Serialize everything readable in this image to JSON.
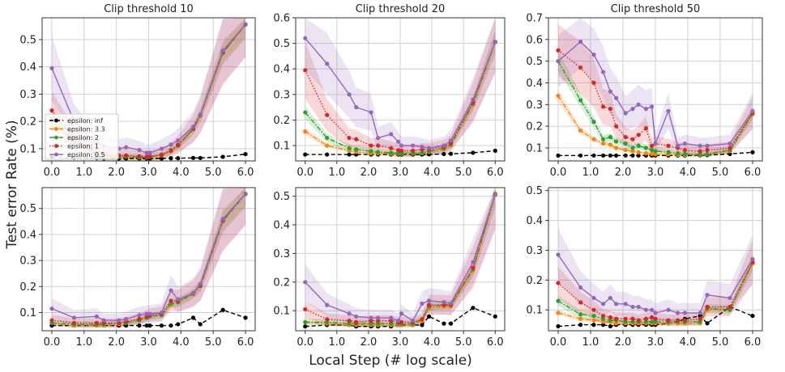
{
  "figure": {
    "ylabel": "Test error Rate (%)",
    "xlabel": "Local Step (# log scale)"
  },
  "legend": {
    "entries": [
      {
        "label": "epsilon: inf",
        "color": "#000000",
        "style": "dashed"
      },
      {
        "label": "epsilon: 3.3",
        "color": "#ff7f0e",
        "style": "dashdot"
      },
      {
        "label": "epsilon: 2",
        "color": "#2ca02c",
        "style": "dashdot"
      },
      {
        "label": "epsilon: 1",
        "color": "#d62728",
        "style": "dotted"
      },
      {
        "label": "epsilon: 0.5",
        "color": "#9467bd",
        "style": "solid"
      }
    ]
  },
  "chart_data": [
    {
      "type": "line",
      "title": "Clip threshold 10",
      "xlabel": "",
      "ylabel": "",
      "xlim": [
        -0.3,
        6.3
      ],
      "ylim": [
        0.055,
        0.58
      ],
      "xticks": [
        0.0,
        1.0,
        2.0,
        3.0,
        4.0,
        5.0,
        6.0
      ],
      "yticks": [
        0.1,
        0.2,
        0.3,
        0.4,
        0.5
      ],
      "grid": true,
      "legend_position": "center-left",
      "x": [
        0.0,
        0.69,
        1.39,
        1.61,
        2.08,
        2.3,
        2.71,
        2.94,
        3.04,
        3.4,
        3.69,
        3.91,
        4.38,
        4.6,
        5.3,
        6.0
      ],
      "series": [
        {
          "name": "epsilon: inf",
          "color": "#000000",
          "style": "dashed",
          "values": [
            0.07,
            0.066,
            0.065,
            0.064,
            0.064,
            0.064,
            0.064,
            0.064,
            0.064,
            0.064,
            0.065,
            0.065,
            0.066,
            0.066,
            0.07,
            0.08
          ]
        },
        {
          "name": "epsilon: 3.3",
          "color": "#ff7f0e",
          "style": "dashdot",
          "values": [
            0.2,
            0.13,
            0.08,
            0.075,
            0.07,
            0.07,
            0.068,
            0.068,
            0.07,
            0.075,
            0.09,
            0.11,
            0.17,
            0.22,
            0.45,
            0.555
          ]
        },
        {
          "name": "epsilon: 2",
          "color": "#2ca02c",
          "style": "dashdot",
          "values": [
            0.21,
            0.13,
            0.08,
            0.075,
            0.07,
            0.07,
            0.068,
            0.068,
            0.07,
            0.076,
            0.092,
            0.112,
            0.172,
            0.222,
            0.452,
            0.555
          ]
        },
        {
          "name": "epsilon: 1",
          "color": "#d62728",
          "style": "dotted",
          "values": [
            0.24,
            0.14,
            0.085,
            0.08,
            0.075,
            0.075,
            0.072,
            0.07,
            0.072,
            0.078,
            0.094,
            0.114,
            0.174,
            0.224,
            0.455,
            0.556
          ]
        },
        {
          "name": "epsilon: 0.5",
          "color": "#9467bd",
          "style": "solid",
          "values": [
            0.395,
            0.2,
            0.12,
            0.11,
            0.1,
            0.105,
            0.095,
            0.085,
            0.085,
            0.1,
            0.115,
            0.13,
            0.18,
            0.225,
            0.46,
            0.556
          ]
        }
      ]
    },
    {
      "type": "line",
      "title": "Clip threshold 20",
      "xlabel": "",
      "ylabel": "",
      "xlim": [
        -0.3,
        6.3
      ],
      "ylim": [
        0.04,
        0.6
      ],
      "xticks": [
        0.0,
        1.0,
        2.0,
        3.0,
        4.0,
        5.0,
        6.0
      ],
      "yticks": [
        0.1,
        0.2,
        0.3,
        0.4,
        0.5,
        0.6
      ],
      "grid": true,
      "x": [
        0.0,
        0.69,
        1.39,
        1.61,
        2.08,
        2.3,
        2.71,
        2.94,
        3.04,
        3.4,
        3.69,
        3.91,
        4.38,
        4.6,
        5.3,
        6.0
      ],
      "series": [
        {
          "name": "epsilon: inf",
          "color": "#000000",
          "style": "dashed",
          "values": [
            0.065,
            0.065,
            0.065,
            0.065,
            0.065,
            0.065,
            0.065,
            0.065,
            0.065,
            0.065,
            0.065,
            0.066,
            0.067,
            0.068,
            0.072,
            0.08
          ]
        },
        {
          "name": "epsilon: 3.3",
          "color": "#ff7f0e",
          "style": "dashdot",
          "values": [
            0.155,
            0.1,
            0.08,
            0.075,
            0.07,
            0.07,
            0.068,
            0.068,
            0.068,
            0.068,
            0.07,
            0.075,
            0.085,
            0.1,
            0.26,
            0.505
          ]
        },
        {
          "name": "epsilon: 2",
          "color": "#2ca02c",
          "style": "dashdot",
          "values": [
            0.23,
            0.13,
            0.09,
            0.085,
            0.078,
            0.075,
            0.072,
            0.07,
            0.07,
            0.07,
            0.072,
            0.078,
            0.09,
            0.105,
            0.265,
            0.505
          ]
        },
        {
          "name": "epsilon: 1",
          "color": "#d62728",
          "style": "dotted",
          "values": [
            0.395,
            0.22,
            0.13,
            0.125,
            0.1,
            0.1,
            0.09,
            0.082,
            0.08,
            0.08,
            0.085,
            0.085,
            0.095,
            0.11,
            0.27,
            0.506
          ]
        },
        {
          "name": "epsilon: 0.5",
          "color": "#9467bd",
          "style": "solid",
          "values": [
            0.52,
            0.42,
            0.3,
            0.25,
            0.23,
            0.13,
            0.145,
            0.115,
            0.1,
            0.1,
            0.095,
            0.09,
            0.1,
            0.12,
            0.28,
            0.505
          ]
        }
      ]
    },
    {
      "type": "line",
      "title": "Clip threshold 50",
      "xlabel": "",
      "ylabel": "",
      "xlim": [
        -0.3,
        6.3
      ],
      "ylim": [
        0.04,
        0.7
      ],
      "xticks": [
        0.0,
        1.0,
        2.0,
        3.0,
        4.0,
        5.0,
        6.0
      ],
      "yticks": [
        0.1,
        0.2,
        0.3,
        0.4,
        0.5,
        0.6,
        0.7
      ],
      "grid": true,
      "x": [
        0.0,
        0.69,
        1.1,
        1.39,
        1.61,
        1.79,
        2.08,
        2.3,
        2.48,
        2.71,
        2.89,
        3.0,
        3.4,
        3.69,
        3.91,
        4.38,
        4.6,
        5.3,
        6.0
      ],
      "series": [
        {
          "name": "epsilon: inf",
          "color": "#000000",
          "style": "dashed",
          "values": [
            0.065,
            0.065,
            0.065,
            0.065,
            0.065,
            0.065,
            0.065,
            0.065,
            0.065,
            0.065,
            0.065,
            0.065,
            0.065,
            0.065,
            0.065,
            0.066,
            0.067,
            0.072,
            0.08
          ]
        },
        {
          "name": "epsilon: 3.3",
          "color": "#ff7f0e",
          "style": "dashdot",
          "values": [
            0.34,
            0.18,
            0.14,
            0.12,
            0.115,
            0.1,
            0.09,
            0.085,
            0.08,
            0.075,
            0.072,
            0.07,
            0.07,
            0.068,
            0.068,
            0.068,
            0.07,
            0.085,
            0.255
          ]
        },
        {
          "name": "epsilon: 2",
          "color": "#2ca02c",
          "style": "dashdot",
          "values": [
            0.5,
            0.32,
            0.22,
            0.14,
            0.15,
            0.13,
            0.12,
            0.1,
            0.11,
            0.1,
            0.09,
            0.085,
            0.08,
            0.075,
            0.072,
            0.07,
            0.072,
            0.09,
            0.26
          ]
        },
        {
          "name": "epsilon: 1",
          "color": "#d62728",
          "style": "dotted",
          "values": [
            0.55,
            0.47,
            0.4,
            0.29,
            0.28,
            0.2,
            0.15,
            0.14,
            0.16,
            0.19,
            0.11,
            0.12,
            0.11,
            0.1,
            0.09,
            0.085,
            0.09,
            0.1,
            0.262
          ]
        },
        {
          "name": "epsilon: 0.5",
          "color": "#9467bd",
          "style": "solid",
          "values": [
            0.5,
            0.59,
            0.53,
            0.45,
            0.36,
            0.33,
            0.26,
            0.28,
            0.3,
            0.28,
            0.29,
            0.12,
            0.27,
            0.11,
            0.12,
            0.11,
            0.11,
            0.12,
            0.27
          ]
        }
      ]
    },
    {
      "type": "line",
      "title": "",
      "xlabel": "",
      "ylabel": "",
      "xlim": [
        -0.3,
        6.3
      ],
      "ylim": [
        0.03,
        0.58
      ],
      "xticks": [
        0.0,
        1.0,
        2.0,
        3.0,
        4.0,
        5.0,
        6.0
      ],
      "yticks": [
        0.1,
        0.2,
        0.3,
        0.4,
        0.5
      ],
      "grid": true,
      "x": [
        0.0,
        0.69,
        1.39,
        1.61,
        2.08,
        2.3,
        2.71,
        2.94,
        3.04,
        3.4,
        3.69,
        3.91,
        4.38,
        4.6,
        5.3,
        6.0
      ],
      "series": [
        {
          "name": "epsilon: inf",
          "color": "#000000",
          "style": "dashed",
          "values": [
            0.05,
            0.05,
            0.05,
            0.05,
            0.05,
            0.05,
            0.05,
            0.05,
            0.05,
            0.05,
            0.05,
            0.055,
            0.08,
            0.055,
            0.11,
            0.08
          ]
        },
        {
          "name": "epsilon: 3.3",
          "color": "#ff7f0e",
          "style": "dashdot",
          "values": [
            0.06,
            0.05,
            0.05,
            0.05,
            0.055,
            0.06,
            0.07,
            0.08,
            0.085,
            0.09,
            0.13,
            0.14,
            0.17,
            0.2,
            0.45,
            0.555
          ]
        },
        {
          "name": "epsilon: 2",
          "color": "#2ca02c",
          "style": "dashdot",
          "values": [
            0.06,
            0.055,
            0.055,
            0.055,
            0.06,
            0.06,
            0.07,
            0.08,
            0.085,
            0.09,
            0.135,
            0.14,
            0.172,
            0.202,
            0.452,
            0.555
          ]
        },
        {
          "name": "epsilon: 1",
          "color": "#d62728",
          "style": "dotted",
          "values": [
            0.07,
            0.06,
            0.06,
            0.06,
            0.06,
            0.065,
            0.075,
            0.085,
            0.09,
            0.095,
            0.145,
            0.145,
            0.175,
            0.205,
            0.455,
            0.556
          ]
        },
        {
          "name": "epsilon: 0.5",
          "color": "#9467bd",
          "style": "solid",
          "values": [
            0.115,
            0.08,
            0.085,
            0.07,
            0.07,
            0.075,
            0.09,
            0.095,
            0.095,
            0.1,
            0.185,
            0.15,
            0.175,
            0.21,
            0.46,
            0.556
          ]
        }
      ]
    },
    {
      "type": "line",
      "title": "",
      "xlabel": "",
      "ylabel": "",
      "xlim": [
        -0.3,
        6.3
      ],
      "ylim": [
        0.03,
        0.53
      ],
      "xticks": [
        0.0,
        1.0,
        2.0,
        3.0,
        4.0,
        5.0,
        6.0
      ],
      "yticks": [
        0.1,
        0.2,
        0.3,
        0.4,
        0.5
      ],
      "grid": true,
      "x": [
        0.0,
        0.69,
        1.39,
        1.61,
        2.08,
        2.3,
        2.71,
        2.94,
        3.04,
        3.4,
        3.69,
        3.91,
        4.38,
        4.6,
        5.3,
        6.0
      ],
      "series": [
        {
          "name": "epsilon: inf",
          "color": "#000000",
          "style": "dashed",
          "values": [
            0.045,
            0.05,
            0.05,
            0.045,
            0.045,
            0.045,
            0.045,
            0.05,
            0.05,
            0.05,
            0.05,
            0.08,
            0.055,
            0.055,
            0.11,
            0.08
          ]
        },
        {
          "name": "epsilon: 3.3",
          "color": "#ff7f0e",
          "style": "dashdot",
          "values": [
            0.06,
            0.055,
            0.05,
            0.05,
            0.05,
            0.05,
            0.05,
            0.05,
            0.05,
            0.05,
            0.065,
            0.11,
            0.115,
            0.115,
            0.24,
            0.51
          ]
        },
        {
          "name": "epsilon: 2",
          "color": "#2ca02c",
          "style": "dashdot",
          "values": [
            0.06,
            0.06,
            0.055,
            0.055,
            0.055,
            0.055,
            0.055,
            0.055,
            0.055,
            0.055,
            0.07,
            0.115,
            0.12,
            0.12,
            0.245,
            0.505
          ]
        },
        {
          "name": "epsilon: 1",
          "color": "#d62728",
          "style": "dotted",
          "values": [
            0.105,
            0.07,
            0.065,
            0.06,
            0.065,
            0.065,
            0.065,
            0.06,
            0.06,
            0.06,
            0.07,
            0.12,
            0.12,
            0.12,
            0.25,
            0.505
          ]
        },
        {
          "name": "epsilon: 0.5",
          "color": "#9467bd",
          "style": "solid",
          "values": [
            0.2,
            0.12,
            0.09,
            0.08,
            0.075,
            0.075,
            0.075,
            0.065,
            0.09,
            0.065,
            0.125,
            0.135,
            0.13,
            0.125,
            0.27,
            0.505
          ]
        }
      ]
    },
    {
      "type": "line",
      "title": "",
      "xlabel": "",
      "ylabel": "",
      "xlim": [
        -0.3,
        6.3
      ],
      "ylim": [
        0.03,
        0.51
      ],
      "xticks": [
        0.0,
        1.0,
        2.0,
        3.0,
        4.0,
        5.0,
        6.0
      ],
      "yticks": [
        0.1,
        0.2,
        0.3,
        0.4,
        0.5
      ],
      "grid": true,
      "x": [
        0.0,
        0.69,
        1.1,
        1.39,
        1.61,
        1.79,
        2.08,
        2.3,
        2.48,
        2.71,
        2.89,
        3.0,
        3.4,
        3.69,
        3.91,
        4.38,
        4.6,
        5.3,
        6.0
      ],
      "series": [
        {
          "name": "epsilon: inf",
          "color": "#000000",
          "style": "dashed",
          "values": [
            0.045,
            0.05,
            0.05,
            0.05,
            0.045,
            0.05,
            0.05,
            0.05,
            0.05,
            0.05,
            0.05,
            0.05,
            0.055,
            0.06,
            0.07,
            0.08,
            0.055,
            0.11,
            0.08
          ]
        },
        {
          "name": "epsilon: 3.3",
          "color": "#ff7f0e",
          "style": "dashdot",
          "values": [
            0.09,
            0.07,
            0.065,
            0.06,
            0.06,
            0.055,
            0.055,
            0.055,
            0.055,
            0.055,
            0.055,
            0.055,
            0.055,
            0.055,
            0.055,
            0.055,
            0.1,
            0.1,
            0.255
          ]
        },
        {
          "name": "epsilon: 2",
          "color": "#2ca02c",
          "style": "dashdot",
          "values": [
            0.13,
            0.085,
            0.08,
            0.07,
            0.065,
            0.065,
            0.06,
            0.06,
            0.06,
            0.06,
            0.06,
            0.06,
            0.06,
            0.06,
            0.06,
            0.06,
            0.105,
            0.1,
            0.26
          ]
        },
        {
          "name": "epsilon: 1",
          "color": "#d62728",
          "style": "dotted",
          "values": [
            0.19,
            0.125,
            0.1,
            0.08,
            0.075,
            0.07,
            0.07,
            0.07,
            0.065,
            0.07,
            0.075,
            0.07,
            0.065,
            0.065,
            0.065,
            0.07,
            0.11,
            0.11,
            0.26
          ]
        },
        {
          "name": "epsilon: 0.5",
          "color": "#9467bd",
          "style": "solid",
          "values": [
            0.285,
            0.175,
            0.14,
            0.12,
            0.14,
            0.12,
            0.12,
            0.11,
            0.11,
            0.1,
            0.1,
            0.09,
            0.1,
            0.09,
            0.09,
            0.09,
            0.15,
            0.14,
            0.27
          ]
        }
      ]
    }
  ]
}
